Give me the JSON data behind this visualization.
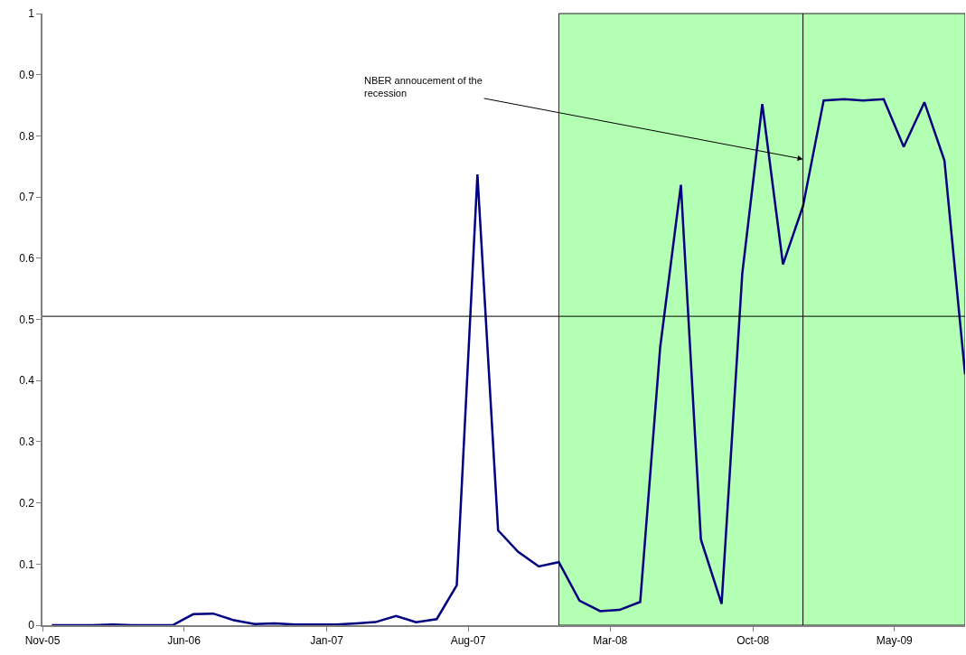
{
  "chart_data": {
    "type": "line",
    "x": [
      "2005-11-15",
      "2005-12-15",
      "2006-01-15",
      "2006-02-15",
      "2006-03-15",
      "2006-04-15",
      "2006-05-15",
      "2006-06-15",
      "2006-07-15",
      "2006-08-15",
      "2006-09-15",
      "2006-10-15",
      "2006-11-15",
      "2006-12-15",
      "2007-01-15",
      "2007-02-15",
      "2007-03-15",
      "2007-04-15",
      "2007-05-15",
      "2007-06-15",
      "2007-07-15",
      "2007-08-15",
      "2007-09-15",
      "2007-10-15",
      "2007-11-15",
      "2007-12-15",
      "2008-01-15",
      "2008-02-15",
      "2008-03-15",
      "2008-04-15",
      "2008-05-15",
      "2008-06-15",
      "2008-07-15",
      "2008-08-15",
      "2008-09-15",
      "2008-10-15",
      "2008-11-15",
      "2008-12-15",
      "2009-01-15",
      "2009-02-15",
      "2009-03-15",
      "2009-04-15",
      "2009-05-15",
      "2009-06-15",
      "2009-07-15",
      "2009-08-15"
    ],
    "series": [
      {
        "color": "#000080",
        "values": [
          0,
          0,
          0,
          0.001,
          0,
          0,
          0,
          0.018,
          0.019,
          0.008,
          0.002,
          0.003,
          0.001,
          0.001,
          0.001,
          0.003,
          0.005,
          0.015,
          0.005,
          0.01,
          0.065,
          0.737,
          0.155,
          0.12,
          0.096,
          0.103,
          0.04,
          0.023,
          0.025,
          0.038,
          0.455,
          0.72,
          0.14,
          0.035,
          0.575,
          0.852,
          0.59,
          0.685,
          0.858,
          0.86,
          0.858,
          0.86,
          0.782,
          0.855,
          0.76,
          0.41
        ]
      }
    ],
    "xlim": [
      "2005-11-01",
      "2009-08-15"
    ],
    "xticks": [
      {
        "value": "2005-11-01",
        "label": "Nov-05"
      },
      {
        "value": "2006-06-01",
        "label": "Jun-06"
      },
      {
        "value": "2007-01-01",
        "label": "Jan-07"
      },
      {
        "value": "2007-08-01",
        "label": "Aug-07"
      },
      {
        "value": "2008-03-01",
        "label": "Mar-08"
      },
      {
        "value": "2008-10-01",
        "label": "Oct-08"
      },
      {
        "value": "2009-05-01",
        "label": "May-09"
      }
    ],
    "ylim": [
      0,
      1
    ],
    "yticks": [
      0,
      0.1,
      0.2,
      0.3,
      0.4,
      0.5,
      0.6,
      0.7,
      0.8,
      0.9,
      1
    ],
    "ref_lines": [
      {
        "axis": "y",
        "value": 0.505,
        "color": "#000000"
      },
      {
        "axis": "x",
        "value": "2008-12-15",
        "color": "#000000"
      }
    ],
    "bands": [
      {
        "axis": "x",
        "from": "2007-12-15",
        "to": "2009-08-15",
        "color": "#b3ffb3"
      }
    ],
    "annotations": [
      {
        "text": "NBER annoucement of the\nrecession",
        "x": "2008-12-15",
        "y": 0.762
      }
    ],
    "grid": false,
    "marker": "none",
    "line_style": "solid"
  }
}
